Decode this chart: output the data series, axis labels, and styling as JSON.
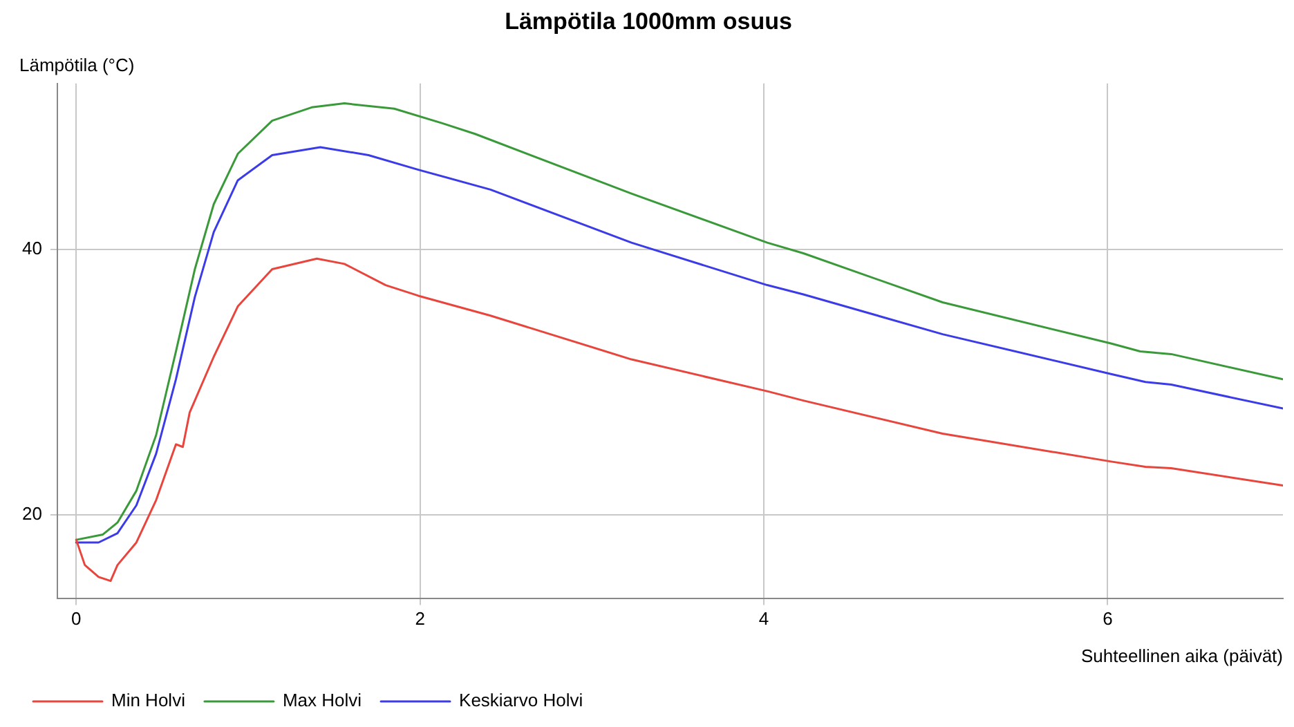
{
  "chart_data": {
    "type": "line",
    "title": "Lämpötila 1000mm osuus",
    "xlabel": "Suhteellinen aika (päivät)",
    "ylabel": "Lämpötila (°C)",
    "xlim": [
      -0.11,
      7.02
    ],
    "xticks": [
      0,
      2,
      4,
      6
    ],
    "ylim": [
      13.7,
      52.5
    ],
    "yticks": [
      20,
      40
    ],
    "grid": true,
    "legend": "bottom left",
    "marker": "none",
    "line_style": "solid",
    "series": [
      {
        "name": "Min Holvi",
        "color": "#e8453c",
        "x": [
          0,
          0.05,
          0.13,
          0.2,
          0.24,
          0.35,
          0.465,
          0.58,
          0.62,
          0.66,
          0.8,
          0.94,
          1.14,
          1.4,
          1.56,
          1.8,
          1.99,
          2.41,
          3.23,
          4.02,
          4.23,
          5.04,
          6.02,
          6.22,
          6.37,
          7.02
        ],
        "values": [
          18.1,
          16.2,
          15.3,
          15.0,
          16.2,
          17.9,
          21.1,
          25.3,
          25.1,
          27.7,
          31.9,
          35.7,
          38.5,
          39.3,
          38.9,
          37.3,
          36.5,
          35.0,
          31.7,
          29.3,
          28.6,
          26.1,
          24.0,
          23.6,
          23.5,
          22.2
        ]
      },
      {
        "name": "Max Holvi",
        "color": "#3a9a3a",
        "x": [
          0,
          0.155,
          0.24,
          0.35,
          0.465,
          0.58,
          0.69,
          0.8,
          0.94,
          1.14,
          1.37,
          1.56,
          1.85,
          2.13,
          2.32,
          3.23,
          4.02,
          4.23,
          5.04,
          6.02,
          6.19,
          6.37,
          7.02
        ],
        "values": [
          18.1,
          18.5,
          19.4,
          21.8,
          26.0,
          32.3,
          38.5,
          43.4,
          47.2,
          49.7,
          50.7,
          51.0,
          50.6,
          49.5,
          48.7,
          44.2,
          40.5,
          39.7,
          36.0,
          32.9,
          32.3,
          32.1,
          30.2
        ]
      },
      {
        "name": "Keskiarvo Holvi",
        "color": "#3b3be8",
        "x": [
          0,
          0.13,
          0.24,
          0.35,
          0.465,
          0.58,
          0.69,
          0.8,
          0.94,
          1.14,
          1.42,
          1.7,
          1.99,
          2.41,
          3.23,
          4.02,
          4.23,
          5.04,
          6.02,
          6.22,
          6.37,
          7.02
        ],
        "values": [
          17.9,
          17.9,
          18.6,
          20.7,
          24.6,
          30.2,
          36.4,
          41.3,
          45.2,
          47.1,
          47.7,
          47.1,
          46.0,
          44.5,
          40.5,
          37.3,
          36.6,
          33.6,
          30.6,
          30.0,
          29.8,
          28.0
        ]
      }
    ]
  }
}
